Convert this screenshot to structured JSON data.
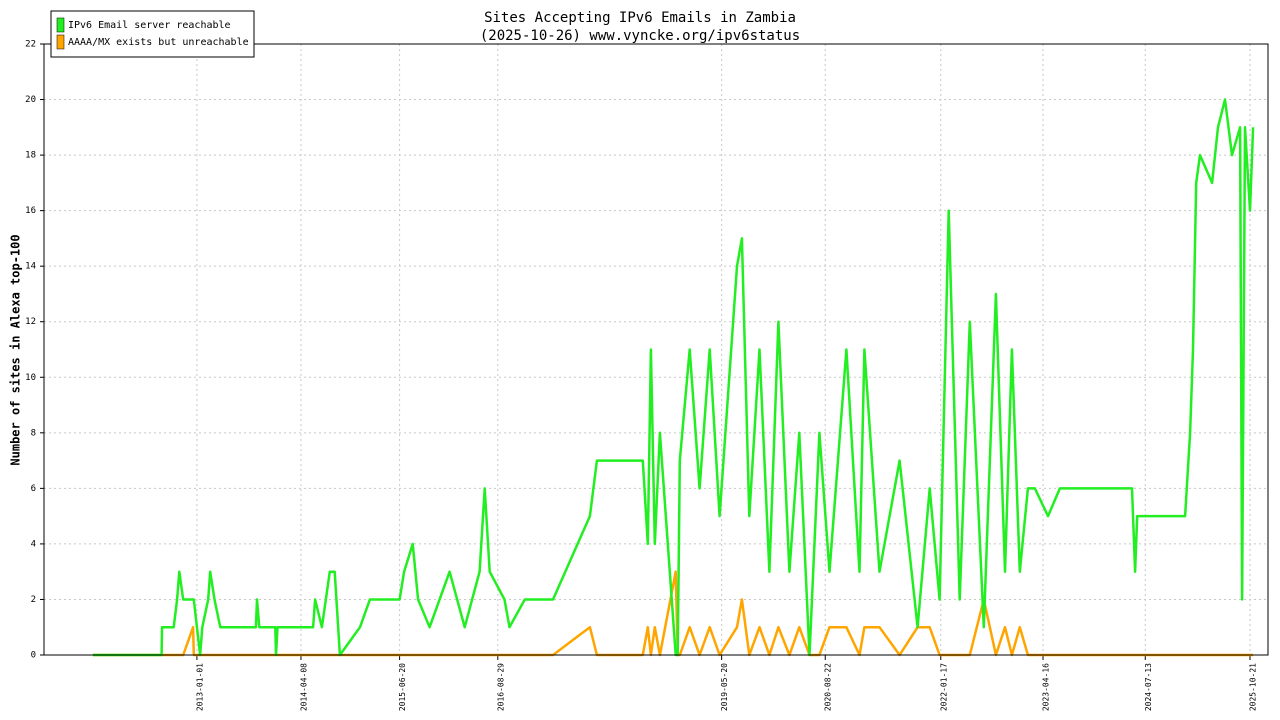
{
  "chart_data": {
    "type": "line",
    "title": "Sites Accepting IPv6 Emails in Zambia",
    "subtitle": "(2025-10-26) www.vyncke.org/ipv6status",
    "y_label": "Number of sites in Alexa top-100",
    "x": [
      "2011-09-27",
      "2012-07-28",
      "2012-07-30",
      "2012-09-20",
      "2012-10-05",
      "2012-10-15",
      "2012-11-01",
      "2012-12-15",
      "2012-12-18",
      "2013-01-15",
      "2013-01-25",
      "2013-02-20",
      "2013-03-01",
      "2013-03-20",
      "2013-04-15",
      "2013-09-20",
      "2013-09-25",
      "2013-10-05",
      "2013-12-15",
      "2013-12-18",
      "2013-12-25",
      "2014-06-01",
      "2014-06-10",
      "2014-07-10",
      "2014-08-14",
      "2014-09-05",
      "2014-09-28",
      "2014-12-26",
      "2015-02-08",
      "2015-06-20",
      "2015-07-10",
      "2015-08-17",
      "2015-09-10",
      "2015-10-31",
      "2016-01-28",
      "2016-04-04",
      "2016-06-09",
      "2016-07-02",
      "2016-07-24",
      "2016-09-28",
      "2016-10-20",
      "2016-12-27",
      "2017-05-01",
      "2017-10-12",
      "2017-11-12",
      "2018-06-04",
      "2018-06-26",
      "2018-07-10",
      "2018-07-27",
      "2018-08-19",
      "2018-10-28",
      "2018-11-06",
      "2018-11-15",
      "2018-12-29",
      "2019-02-11",
      "2019-03-28",
      "2019-05-11",
      "2019-07-27",
      "2019-08-18",
      "2019-09-20",
      "2019-11-04",
      "2019-12-18",
      "2020-01-27",
      "2020-03-16",
      "2020-04-29",
      "2020-06-13",
      "2020-07-27",
      "2020-09-10",
      "2020-11-24",
      "2021-01-21",
      "2021-02-12",
      "2021-04-20",
      "2021-07-18",
      "2021-10-06",
      "2021-11-29",
      "2022-01-12",
      "2022-02-21",
      "2022-04-11",
      "2022-05-26",
      "2022-07-27",
      "2022-09-19",
      "2022-10-29",
      "2022-11-29",
      "2023-01-03",
      "2023-02-08",
      "2023-03-11",
      "2023-05-08",
      "2023-06-30",
      "2024-05-15",
      "2024-05-29",
      "2024-06-07",
      "2025-01-06",
      "2025-01-28",
      "2025-02-10",
      "2025-02-24",
      "2025-03-13",
      "2025-05-06",
      "2025-06-01",
      "2025-07-02",
      "2025-08-02",
      "2025-09-07",
      "2025-09-16",
      "2025-09-29",
      "2025-10-21",
      "2025-11-04"
    ],
    "series": [
      {
        "name": "IPv6 Email server reachable",
        "color": "#22ee22",
        "values": [
          0,
          0,
          1,
          1,
          2,
          3,
          2,
          2,
          2,
          0,
          1,
          2,
          3,
          2,
          1,
          1,
          2,
          1,
          1,
          0,
          1,
          1,
          2,
          1,
          3,
          3,
          0,
          1,
          2,
          2,
          3,
          4,
          2,
          1,
          3,
          1,
          3,
          6,
          3,
          2,
          1,
          2,
          2,
          5,
          7,
          7,
          4,
          11,
          4,
          8,
          0,
          0,
          7,
          11,
          6,
          11,
          5,
          14,
          15,
          5,
          11,
          3,
          12,
          3,
          8,
          0,
          8,
          3,
          11,
          3,
          11,
          3,
          7,
          1,
          6,
          2,
          16,
          2,
          12,
          1,
          13,
          3,
          11,
          3,
          6,
          6,
          5,
          6,
          6,
          3,
          5,
          5,
          8,
          11,
          17,
          18,
          17,
          19,
          20,
          18,
          19,
          2,
          19,
          16,
          19
        ]
      },
      {
        "name": "AAAA/MX exists but unreachable",
        "color": "#ffa500",
        "values": [
          0,
          0,
          0,
          0,
          0,
          0,
          0,
          1,
          0,
          0,
          0,
          0,
          0,
          0,
          0,
          0,
          0,
          0,
          0,
          0,
          0,
          0,
          0,
          0,
          0,
          0,
          0,
          0,
          0,
          0,
          0,
          0,
          0,
          0,
          0,
          0,
          0,
          0,
          0,
          0,
          0,
          0,
          0,
          1,
          0,
          0,
          1,
          0,
          1,
          0,
          3,
          0,
          0,
          1,
          0,
          1,
          0,
          1,
          2,
          0,
          1,
          0,
          1,
          0,
          1,
          0,
          0,
          1,
          1,
          0,
          1,
          1,
          0,
          1,
          1,
          0,
          0,
          0,
          0,
          2,
          0,
          1,
          0,
          1,
          0,
          0,
          0,
          0,
          0,
          0,
          0,
          0,
          0,
          0,
          0,
          0,
          0,
          0,
          0,
          0,
          0,
          0,
          0,
          0,
          0
        ]
      }
    ],
    "xlim": [
      "2011-02-22",
      "2026-01-09"
    ],
    "xticks": [
      "2013-01-01",
      "2014-04-08",
      "2015-06-20",
      "2016-08-29",
      "2019-05-20",
      "2020-08-22",
      "2022-01-17",
      "2023-04-16",
      "2024-07-13",
      "2025-10-21"
    ],
    "ylim": [
      0,
      22
    ],
    "yticks": [
      0,
      2,
      4,
      6,
      8,
      10,
      12,
      14,
      16,
      18,
      20,
      22
    ],
    "grid": true,
    "legend": "upper-left"
  }
}
